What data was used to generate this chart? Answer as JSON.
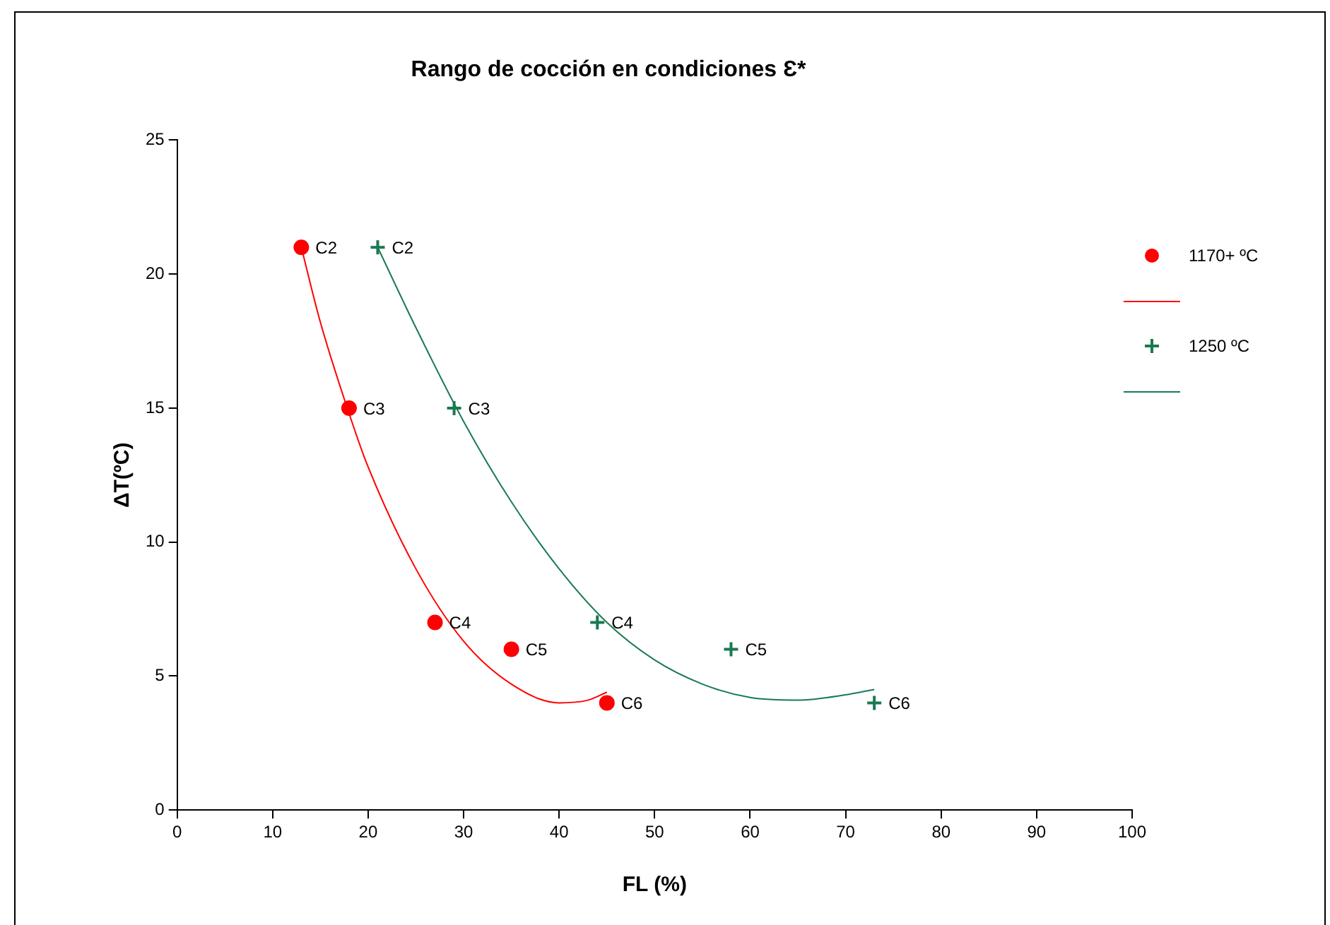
{
  "chart_data": {
    "type": "scatter",
    "title": "Rango de cocción en condiciones Ɛ*",
    "xlabel": "FL (%)",
    "ylabel": "ΔT(ºC)",
    "xlim": [
      0,
      100
    ],
    "xticks": [
      0,
      10,
      20,
      30,
      40,
      50,
      60,
      70,
      80,
      90,
      100
    ],
    "ylim": [
      0,
      25
    ],
    "yticks": [
      0,
      5,
      10,
      15,
      20,
      25
    ],
    "grid": false,
    "legend": "right",
    "series": [
      {
        "name": "1170+ ºC",
        "type": "scatter",
        "marker": "circle",
        "color": "#ff0000",
        "x": [
          13,
          18,
          27,
          35,
          45
        ],
        "values": [
          21,
          15,
          7,
          6,
          4
        ]
      },
      {
        "type": "line",
        "marker": "none",
        "color": "#ff0000",
        "x": [
          13,
          15,
          18,
          20,
          25,
          30,
          35,
          40,
          43,
          45
        ],
        "values": [
          21,
          18.2,
          14.8,
          12.8,
          9,
          6.3,
          4.7,
          4,
          4.1,
          4.4
        ]
      },
      {
        "name": "1250 ºC",
        "type": "scatter",
        "marker": "cross",
        "color": "#1a7a50",
        "x": [
          21,
          29,
          44,
          58,
          73
        ],
        "values": [
          21,
          15,
          7,
          6,
          4
        ]
      },
      {
        "type": "line",
        "marker": "none",
        "color": "#1a7a50",
        "x": [
          21,
          25,
          30,
          35,
          40,
          45,
          50,
          55,
          60,
          65,
          70,
          73
        ],
        "values": [
          21,
          18,
          14.5,
          11.5,
          9,
          7,
          5.6,
          4.7,
          4.2,
          4.1,
          4.3,
          4.5
        ]
      }
    ],
    "annotations": [
      {
        "text": "C2",
        "x": 13,
        "y": 21
      },
      {
        "text": "C3",
        "x": 18,
        "y": 15
      },
      {
        "text": "C4",
        "x": 27,
        "y": 7
      },
      {
        "text": "C5",
        "x": 35,
        "y": 6
      },
      {
        "text": "C6",
        "x": 45,
        "y": 4
      },
      {
        "text": "C2",
        "x": 21,
        "y": 21
      },
      {
        "text": "C3",
        "x": 29,
        "y": 15
      },
      {
        "text": "C4",
        "x": 44,
        "y": 7
      },
      {
        "text": "C5",
        "x": 58,
        "y": 6
      },
      {
        "text": "C6",
        "x": 73,
        "y": 4
      }
    ]
  }
}
